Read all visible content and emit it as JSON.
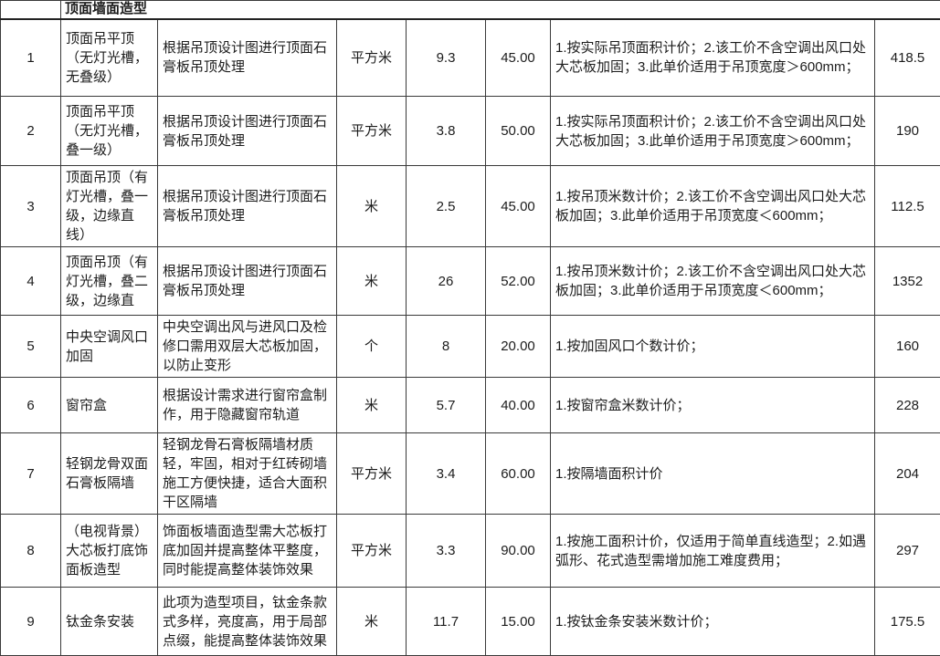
{
  "section": {
    "title": "顶面墙面造型"
  },
  "table": {
    "rows": [
      {
        "num": "1",
        "item": "顶面吊平顶（无灯光槽，无叠级）",
        "desc": "根据吊顶设计图进行顶面石膏板吊顶处理",
        "unit": "平方米",
        "qty": "9.3",
        "price": "45.00",
        "notes": "1.按实际吊顶面积计价；2.该工价不含空调出风口处大芯板加固；3.此单价适用于吊顶宽度＞600mm；",
        "total": "418.5"
      },
      {
        "num": "2",
        "item": "顶面吊平顶（无灯光槽，叠一级）",
        "desc": "根据吊顶设计图进行顶面石膏板吊顶处理",
        "unit": "平方米",
        "qty": "3.8",
        "price": "50.00",
        "notes": "1.按实际吊顶面积计价；2.该工价不含空调出风口处大芯板加固；3.此单价适用于吊顶宽度＞600mm；",
        "total": "190"
      },
      {
        "num": "3",
        "item": "顶面吊顶（有灯光槽，叠一级，边缘直线）",
        "desc": "根据吊顶设计图进行顶面石膏板吊顶处理",
        "unit": "米",
        "qty": "2.5",
        "price": "45.00",
        "notes": "1.按吊顶米数计价；2.该工价不含空调出风口处大芯板加固；3.此单价适用于吊顶宽度＜600mm；",
        "total": "112.5"
      },
      {
        "num": "4",
        "item": "顶面吊顶（有灯光槽，叠二级，边缘直",
        "desc": "根据吊顶设计图进行顶面石膏板吊顶处理",
        "unit": "米",
        "qty": "26",
        "price": "52.00",
        "notes": "1.按吊顶米数计价；2.该工价不含空调出风口处大芯板加固；3.此单价适用于吊顶宽度＜600mm；",
        "total": "1352"
      },
      {
        "num": "5",
        "item": "中央空调风口加固",
        "desc": "中央空调出风与进风口及检修口需用双层大芯板加固，以防止变形",
        "unit": "个",
        "qty": "8",
        "price": "20.00",
        "notes": "1.按加固风口个数计价；",
        "total": "160"
      },
      {
        "num": "6",
        "item": "窗帘盒",
        "desc": "根据设计需求进行窗帘盒制作，用于隐藏窗帘轨道",
        "unit": "米",
        "qty": "5.7",
        "price": "40.00",
        "notes": "1.按窗帘盒米数计价；",
        "total": "228"
      },
      {
        "num": "7",
        "item": "轻钢龙骨双面石膏板隔墙",
        "desc": "轻钢龙骨石膏板隔墙材质轻，牢固，相对于红砖砌墙施工方便快捷，适合大面积干区隔墙",
        "unit": "平方米",
        "qty": "3.4",
        "price": "60.00",
        "notes": "1.按隔墙面积计价",
        "total": "204"
      },
      {
        "num": "8",
        "item": "（电视背景）大芯板打底饰面板造型",
        "desc": "饰面板墙面造型需大芯板打底加固并提高整体平整度，同时能提高整体装饰效果",
        "unit": "平方米",
        "qty": "3.3",
        "price": "90.00",
        "notes": "1.按施工面积计价，仅适用于简单直线造型；2.如遇弧形、花式造型需增加施工难度费用；",
        "total": "297"
      },
      {
        "num": "9",
        "item": "钛金条安装",
        "desc": "此项为造型项目，钛金条款式多样，亮度高，用于局部点缀，能提高整体装饰效果",
        "unit": "米",
        "qty": "11.7",
        "price": "15.00",
        "notes": "1.按钛金条安装米数计价；",
        "total": "175.5"
      }
    ]
  },
  "colors": {
    "border": "#3a3a3a",
    "text": "#1c1c1c",
    "background": "#ffffff"
  }
}
